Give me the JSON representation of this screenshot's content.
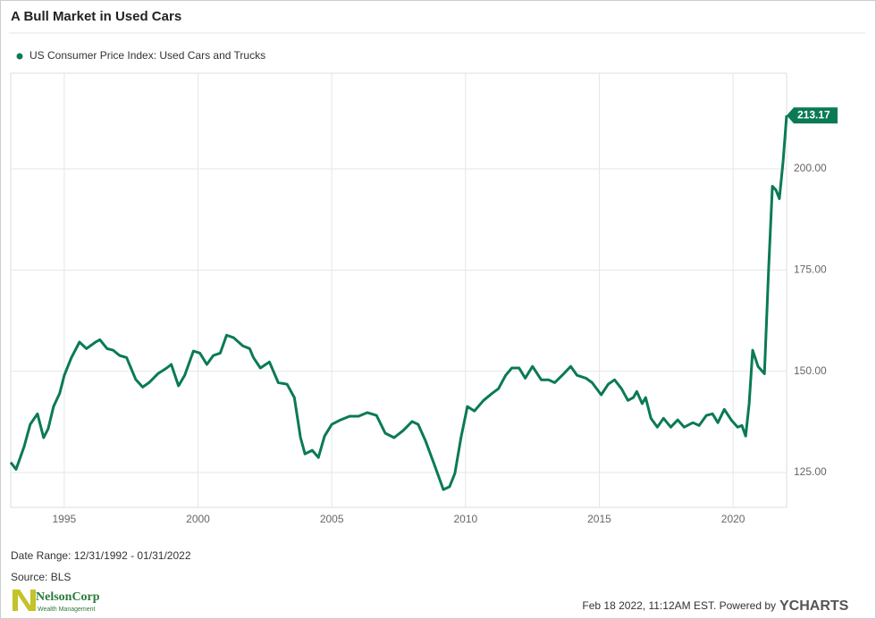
{
  "chart_data": {
    "type": "line",
    "title": "A Bull Market in Used Cars",
    "x": [
      1993.0,
      1993.2,
      1993.5,
      1993.73,
      1994.0,
      1994.23,
      1994.4,
      1994.6,
      1994.83,
      1995.0,
      1995.27,
      1995.57,
      1995.83,
      1996.17,
      1996.33,
      1996.6,
      1996.83,
      1997.07,
      1997.33,
      1997.67,
      1997.93,
      1998.17,
      1998.5,
      1998.83,
      1999.0,
      1999.27,
      1999.5,
      1999.83,
      2000.07,
      2000.33,
      2000.57,
      2000.83,
      2001.07,
      2001.33,
      2001.67,
      2001.93,
      2002.07,
      2002.33,
      2002.67,
      2003.0,
      2003.33,
      2003.6,
      2003.83,
      2004.0,
      2004.27,
      2004.5,
      2004.73,
      2005.0,
      2005.33,
      2005.67,
      2006.0,
      2006.33,
      2006.67,
      2007.0,
      2007.33,
      2007.67,
      2008.0,
      2008.23,
      2008.5,
      2008.83,
      2009.17,
      2009.4,
      2009.6,
      2009.83,
      2010.07,
      2010.33,
      2010.67,
      2011.0,
      2011.23,
      2011.5,
      2011.73,
      2012.0,
      2012.23,
      2012.5,
      2012.83,
      2013.1,
      2013.33,
      2013.67,
      2013.93,
      2014.17,
      2014.5,
      2014.73,
      2015.07,
      2015.33,
      2015.57,
      2015.83,
      2016.07,
      2016.27,
      2016.4,
      2016.6,
      2016.73,
      2016.93,
      2017.17,
      2017.4,
      2017.67,
      2017.93,
      2018.17,
      2018.5,
      2018.73,
      2019.0,
      2019.23,
      2019.43,
      2019.67,
      2019.93,
      2020.17,
      2020.33,
      2020.47,
      2020.6,
      2020.73,
      2020.93,
      2021.17,
      2021.33,
      2021.47,
      2021.6,
      2021.73,
      2021.87,
      2022.0
    ],
    "series": [
      {
        "name": "US Consumer Price Index: Used Cars and Trucks",
        "color": "#0a7a55",
        "values": [
          127.5,
          125.8,
          131.4,
          136.9,
          139.5,
          133.6,
          135.8,
          141.3,
          144.6,
          149,
          153.4,
          157.2,
          155.6,
          157.2,
          157.8,
          155.6,
          155.2,
          153.9,
          153.4,
          148,
          146.1,
          147.2,
          149.4,
          150.8,
          151.7,
          146.4,
          149,
          155,
          154.5,
          151.7,
          153.9,
          154.5,
          158.9,
          158.3,
          156.3,
          155.6,
          153.4,
          150.8,
          152.3,
          147.2,
          146.8,
          143.5,
          133.6,
          129.6,
          130.5,
          128.7,
          134,
          136.9,
          138,
          138.9,
          138.9,
          139.8,
          139.1,
          134.7,
          133.6,
          135.4,
          137.6,
          136.9,
          132.9,
          127,
          120.8,
          121.5,
          124.8,
          133.6,
          141.3,
          140.2,
          142.8,
          144.6,
          145.7,
          149,
          150.8,
          150.8,
          148.3,
          151.2,
          147.9,
          147.9,
          147.2,
          149.4,
          151.2,
          149,
          148.3,
          147.2,
          144.2,
          146.8,
          147.9,
          145.7,
          142.8,
          143.5,
          145,
          142,
          143.5,
          138.4,
          136.2,
          138.4,
          136.2,
          138,
          136.2,
          137.3,
          136.6,
          139.1,
          139.5,
          137.3,
          140.6,
          138,
          136.2,
          136.6,
          134,
          142,
          155.2,
          151.2,
          149.4,
          175.4,
          195.7,
          194.8,
          192.6,
          201.9,
          213.17
        ]
      }
    ],
    "xlim": [
      1993,
      2022
    ],
    "xticks": [
      1995,
      2000,
      2005,
      2010,
      2015,
      2020
    ],
    "ylim": [
      116.4,
      223.6
    ],
    "yticks": [
      {
        "value": 125,
        "label": "125.00"
      },
      {
        "value": 150,
        "label": "150.00"
      },
      {
        "value": 175,
        "label": "175.00"
      },
      {
        "value": 200,
        "label": "200.00"
      }
    ],
    "grid": true
  },
  "footer": {
    "date_range": "Date Range: 12/31/1992 - 01/31/2022",
    "source": "Source: BLS",
    "timestamp": "Feb 18 2022, 11:12AM EST.  Powered by",
    "brand": "YCHARTS",
    "logo_name": "NelsonCorp",
    "logo_tagline": "Wealth Management"
  }
}
